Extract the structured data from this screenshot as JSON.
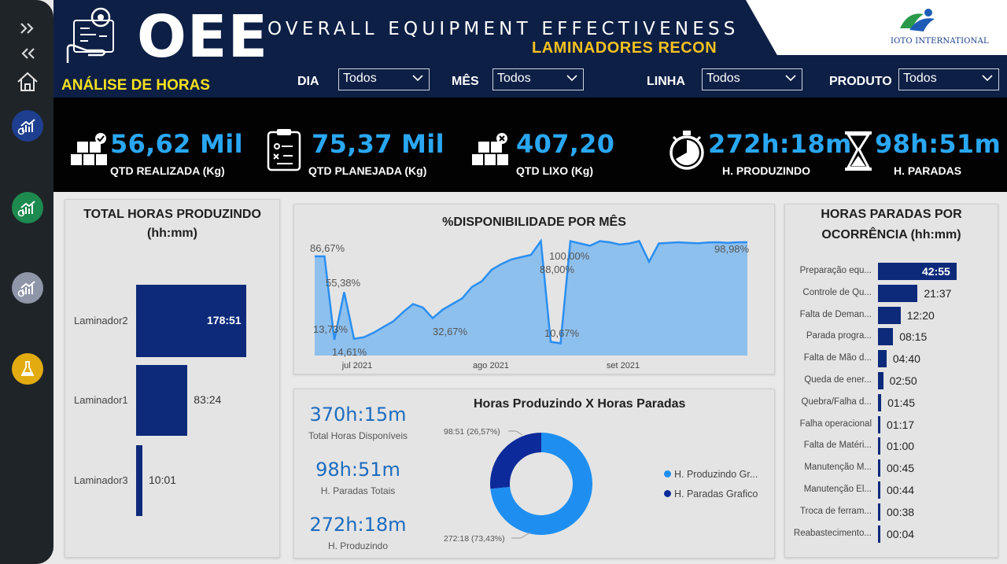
{
  "header": {
    "logo_text": "OEE",
    "title": "OVERALL EQUIPMENT EFFECTIVENESS",
    "subtitle": "LAMINADORES RECON",
    "section": "ANÁLISE DE HORAS",
    "brand": "IOTO INTERNATIONAL",
    "filters": [
      {
        "label": "DIA",
        "value": "Todos"
      },
      {
        "label": "MÊS",
        "value": "Todos"
      },
      {
        "label": "LINHA",
        "value": "Todos"
      },
      {
        "label": "PRODUTO",
        "value": "Todos"
      }
    ]
  },
  "sidebar": {
    "icons": [
      "expand-icon",
      "collapse-icon",
      "home-icon",
      "report-blue-icon",
      "report-green-icon",
      "report-gray-icon",
      "lab-flask-icon"
    ]
  },
  "kpis": [
    {
      "value": "56,62 Mil",
      "label": "QTD REALIZADA (Kg)",
      "icon": "boxes-check-icon"
    },
    {
      "value": "75,37 Mil",
      "label": "QTD PLANEJADA (Kg)",
      "icon": "clipboard-plan-icon"
    },
    {
      "value": "407,20",
      "label": "QTD LIXO (Kg)",
      "icon": "boxes-x-icon"
    },
    {
      "value": "272h:18m",
      "label": "H. PRODUZINDO",
      "icon": "stopwatch-icon"
    },
    {
      "value": "98h:51m",
      "label": "H. PARADAS",
      "icon": "hourglass-icon"
    }
  ],
  "total_horas": {
    "title_line1": "TOTAL HORAS PRODUZINDO",
    "title_line2": "(hh:mm)"
  },
  "disponibilidade": {
    "title": "%DISPONIBILIDADE POR MÊS",
    "x_ticks": [
      "jul 2021",
      "ago 2021",
      "set 2021"
    ],
    "labels": [
      "86,67%",
      "55,38%",
      "13,73%",
      "14,61%",
      "32,67%",
      "100,00%",
      "88,00%",
      "10,67%",
      "98,98%"
    ]
  },
  "horas_vs": {
    "title": "Horas Produzindo X Horas Paradas",
    "stats": [
      {
        "value": "370h:15m",
        "label": "Total Horas Disponíveis"
      },
      {
        "value": "98h:51m",
        "label": "H. Paradas Totais"
      },
      {
        "value": "272h:18m",
        "label": "H. Produzindo"
      }
    ],
    "slice_labels": [
      "98:51 (26,57%)",
      "272:18 (73,43%)"
    ],
    "legend": [
      "H. Produzindo Gr...",
      "H. Paradas Grafico"
    ]
  },
  "ocorrencia": {
    "title_line1": "HORAS PARADAS POR",
    "title_line2": "OCORRÊNCIA (hh:mm)"
  },
  "chart_data": [
    {
      "type": "bar",
      "orientation": "horizontal",
      "title": "TOTAL HORAS PRODUZINDO (hh:mm)",
      "categories": [
        "Laminador2",
        "Laminador1",
        "Laminador3"
      ],
      "values": [
        178.85,
        83.4,
        10.0167
      ],
      "value_labels": [
        "178:51",
        "83:24",
        "10:01"
      ]
    },
    {
      "type": "area",
      "title": "%DISPONIBILIDADE POR MÊS",
      "x_ticks": [
        "jul 2021",
        "ago 2021",
        "set 2021"
      ],
      "values": [
        86.67,
        86.67,
        13.73,
        55.38,
        14.61,
        16,
        20,
        25,
        30,
        38,
        45,
        42,
        32.67,
        40,
        45,
        50,
        60,
        65,
        75,
        80,
        84,
        86,
        88,
        100,
        12,
        10.67,
        100,
        98,
        96,
        100,
        99,
        97,
        98,
        100,
        82,
        98,
        98.5,
        99,
        98.5,
        98.2,
        98.8,
        98.98,
        98.5,
        98.98,
        98.98
      ],
      "ylim": [
        0,
        110
      ]
    },
    {
      "type": "pie",
      "title": "Horas Produzindo X Horas Paradas",
      "series": [
        {
          "name": "H. Produzindo Gr...",
          "value": 73.43,
          "label": "272:18 (73,43%)",
          "color": "#1e8ff0"
        },
        {
          "name": "H. Paradas Grafico",
          "value": 26.57,
          "label": "98:51 (26,57%)",
          "color": "#0d2a9a"
        }
      ]
    },
    {
      "type": "bar",
      "orientation": "horizontal",
      "title": "HORAS PARADAS POR OCORRÊNCIA (hh:mm)",
      "categories": [
        "Preparação equ...",
        "Controle de Qu...",
        "Falta de Deman...",
        "Parada progra...",
        "Falta de Mão d...",
        "Queda de ener...",
        "Quebra/Falha d...",
        "Falha operacional",
        "Falta de Matéri...",
        "Manutenção M...",
        "Manutenção El...",
        "Troca de ferram...",
        "Reabastecimento..."
      ],
      "values": [
        42.917,
        21.617,
        12.333,
        8.25,
        4.667,
        2.833,
        1.75,
        1.283,
        1.0,
        0.75,
        0.733,
        0.633,
        0.067
      ],
      "value_labels": [
        "42:55",
        "21:37",
        "12:20",
        "08:15",
        "04:40",
        "02:50",
        "01:45",
        "01:17",
        "01:00",
        "00:45",
        "00:44",
        "00:38",
        "00:04"
      ]
    }
  ],
  "colors": {
    "header_bg": "#0d1f45",
    "accent_yellow": "#f5c11e",
    "kpi_blue": "#2aa7f2",
    "bar_navy": "#0d2a7a",
    "area_fill": "#8ec0ee",
    "line_blue": "#2b8ef0"
  }
}
